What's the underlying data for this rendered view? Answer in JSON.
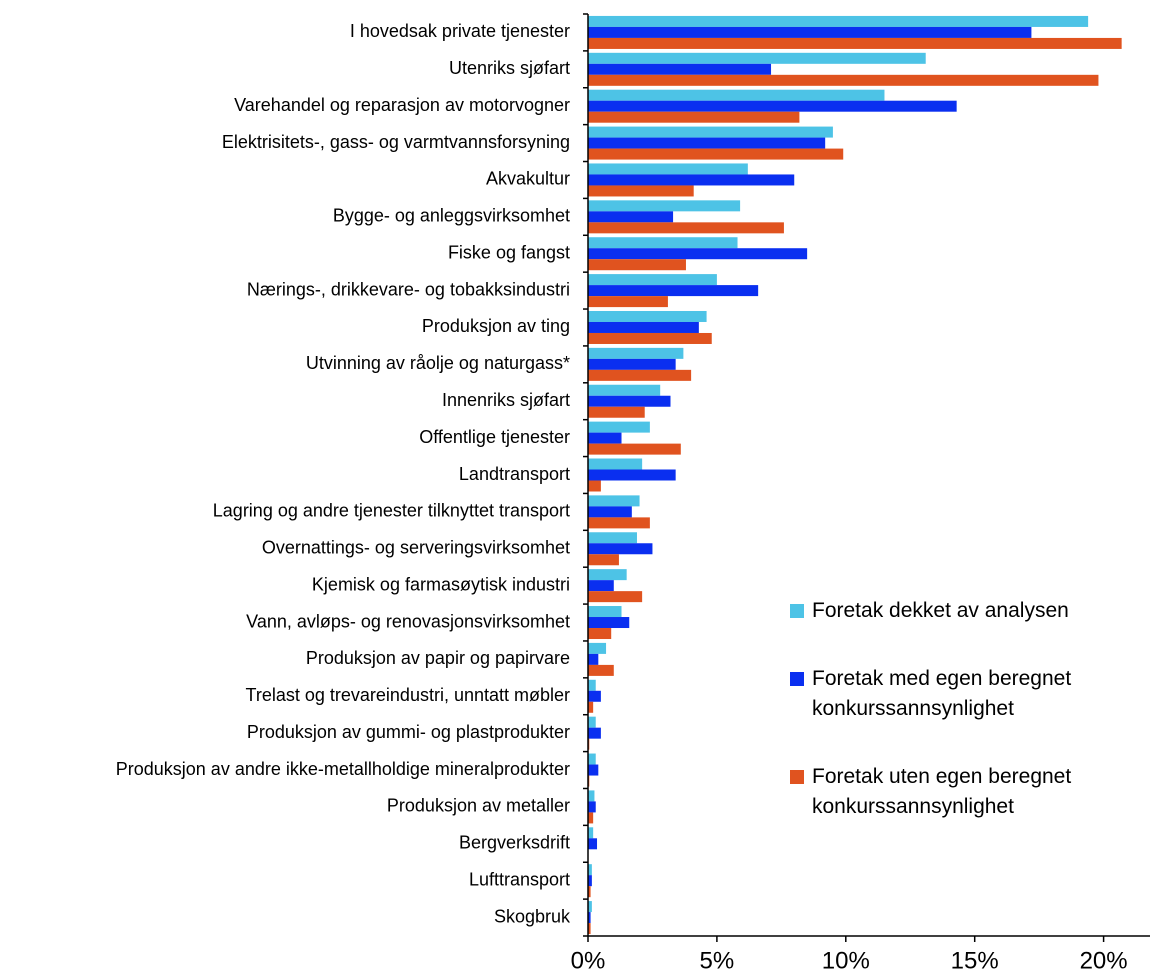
{
  "chart_data": {
    "type": "hbar",
    "categories": [
      "I hovedsak private tjenester",
      "Utenriks sjøfart",
      "Varehandel og reparasjon av motorvogner",
      "Elektrisitets-, gass- og varmtvannsforsyning",
      "Akvakultur",
      "Bygge- og anleggsvirksomhet",
      "Fiske og fangst",
      "Nærings-, drikkevare- og tobakksindustri",
      "Produksjon av ting",
      "Utvinning av råolje og naturgass*",
      "Innenriks sjøfart",
      "Offentlige tjenester",
      "Landtransport",
      "Lagring og andre tjenester tilknyttet transport",
      "Overnattings- og serveringsvirksomhet",
      "Kjemisk og farmasøytisk industri",
      "Vann, avløps- og renovasjonsvirksomhet",
      "Produksjon av papir og papirvare",
      "Trelast og trevareindustri, unntatt møbler",
      "Produksjon av gummi- og plastprodukter",
      "Produksjon av andre ikke-metallholdige mineralprodukter",
      "Produksjon av metaller",
      "Bergverksdrift",
      "Lufttransport",
      "Skogbruk"
    ],
    "series": [
      {
        "name": "Foretak dekket av analysen",
        "color": "#4dc3e6",
        "values": [
          19.4,
          13.1,
          11.5,
          9.5,
          6.2,
          5.9,
          5.8,
          5.0,
          4.6,
          3.7,
          2.8,
          2.4,
          2.1,
          2.0,
          1.9,
          1.5,
          1.3,
          0.7,
          0.3,
          0.3,
          0.3,
          0.25,
          0.2,
          0.15,
          0.15
        ]
      },
      {
        "name": "Foretak med egen beregnet konkurssannsynlighet",
        "color": "#0a2ff0",
        "values": [
          17.2,
          7.1,
          14.3,
          9.2,
          8.0,
          3.3,
          8.5,
          6.6,
          4.3,
          3.4,
          3.2,
          1.3,
          3.4,
          1.7,
          2.5,
          1.0,
          1.6,
          0.4,
          0.5,
          0.5,
          0.4,
          0.3,
          0.35,
          0.15,
          0.1
        ]
      },
      {
        "name": "Foretak uten egen beregnet konkurssannsynlighet",
        "color": "#e0531f",
        "values": [
          20.7,
          19.8,
          8.2,
          9.9,
          4.1,
          7.6,
          3.8,
          3.1,
          4.8,
          4.0,
          2.2,
          3.6,
          0.5,
          2.4,
          1.2,
          2.1,
          0.9,
          1.0,
          0.2,
          0.05,
          0.05,
          0.2,
          0,
          0.1,
          0.1
        ]
      }
    ],
    "xlim": [
      0,
      21.8
    ],
    "xticks": [
      {
        "value": 0,
        "label": "0%"
      },
      {
        "value": 5,
        "label": "5%"
      },
      {
        "value": 10,
        "label": "10%"
      },
      {
        "value": 15,
        "label": "15%"
      },
      {
        "value": 20,
        "label": "20%"
      }
    ]
  }
}
